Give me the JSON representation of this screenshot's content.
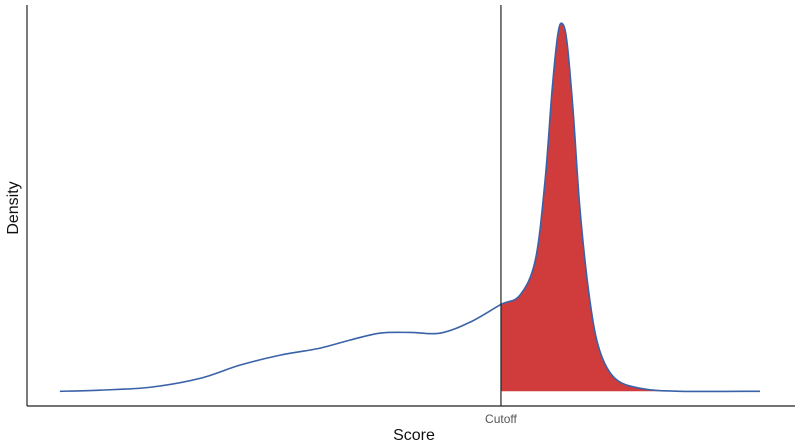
{
  "chart_data": {
    "type": "density",
    "xlabel": "Score",
    "ylabel": "Density",
    "x": [
      0,
      5.7,
      12.9,
      20,
      25.7,
      31.4,
      37.1,
      41.4,
      45.7,
      50,
      54.3,
      58.6,
      63,
      65.7,
      67.9,
      69.3,
      70.3,
      71.1,
      71.7,
      72.4,
      73.3,
      74.3,
      75.7,
      77.1,
      79.3,
      82.9,
      88.6,
      100
    ],
    "values": [
      0,
      0.003,
      0.011,
      0.035,
      0.071,
      0.098,
      0.117,
      0.139,
      0.158,
      0.16,
      0.158,
      0.188,
      0.236,
      0.261,
      0.356,
      0.573,
      0.818,
      0.967,
      1,
      0.954,
      0.764,
      0.492,
      0.247,
      0.111,
      0.035,
      0.008,
      0,
      0
    ],
    "color": "#3a62a8",
    "fill_color": "#d03c3c",
    "xlim": [
      -4.7,
      105
    ],
    "ylim": [
      -0.04,
      1.05
    ],
    "xticks": [
      {
        "value": 63,
        "label": "Cutoff"
      }
    ]
  }
}
